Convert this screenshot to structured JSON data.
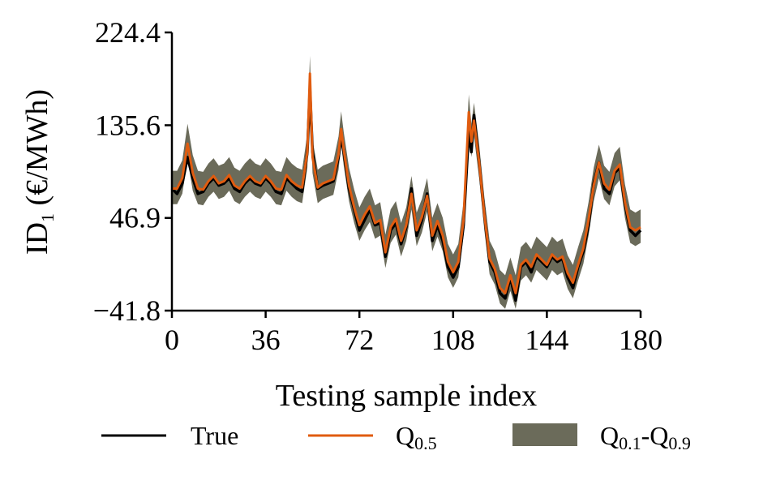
{
  "chart_data": {
    "type": "line",
    "xlabel": "Testing sample index",
    "ylabel": "ID",
    "ylabel_sub": "1",
    "ylabel_unit": " (€/MWh)",
    "xlim": [
      0,
      180
    ],
    "ylim": [
      -41.8,
      224.4
    ],
    "xticks": [
      0,
      36,
      72,
      108,
      144,
      180
    ],
    "xtick_labels": [
      "0",
      "36",
      "72",
      "108",
      "144",
      "180"
    ],
    "yticks": [
      -41.8,
      46.9,
      135.6,
      224.4
    ],
    "ytick_labels": [
      "−41.8",
      "46.9",
      "135.6",
      "224.4"
    ],
    "grid": false,
    "legend_position": "bottom",
    "colors": {
      "true": "#000000",
      "median": "#e05c10",
      "band": "#6b6b5a"
    },
    "legend": {
      "true_label": "True",
      "median_label": "Q",
      "median_sub": "0.5",
      "band_label_a": "Q",
      "band_sub_a": "0.1",
      "band_sep": "-Q",
      "band_sub_b": "0.9"
    },
    "x": [
      0,
      2,
      4,
      6,
      8,
      10,
      12,
      14,
      16,
      18,
      20,
      22,
      24,
      26,
      28,
      30,
      32,
      34,
      36,
      38,
      40,
      42,
      44,
      46,
      48,
      50,
      52,
      53,
      54,
      56,
      58,
      60,
      62,
      64,
      65,
      66,
      68,
      70,
      72,
      74,
      76,
      78,
      80,
      82,
      84,
      86,
      88,
      90,
      92,
      94,
      96,
      98,
      100,
      102,
      104,
      106,
      108,
      110,
      112,
      114,
      115,
      116,
      118,
      120,
      122,
      124,
      126,
      128,
      130,
      132,
      134,
      136,
      138,
      140,
      142,
      144,
      146,
      148,
      150,
      152,
      154,
      156,
      158,
      160,
      162,
      164,
      166,
      168,
      170,
      172,
      174,
      176,
      178,
      180
    ],
    "series": [
      {
        "name": "True",
        "values": [
          75,
          70,
          80,
          105,
          85,
          70,
          72,
          80,
          85,
          78,
          80,
          85,
          75,
          72,
          80,
          85,
          80,
          78,
          85,
          80,
          72,
          70,
          85,
          80,
          75,
          72,
          110,
          170,
          110,
          75,
          78,
          80,
          82,
          105,
          125,
          110,
          75,
          55,
          35,
          45,
          55,
          40,
          42,
          10,
          35,
          42,
          22,
          38,
          75,
          30,
          45,
          70,
          25,
          40,
          25,
          0,
          -10,
          0,
          40,
          130,
          110,
          145,
          100,
          50,
          5,
          -5,
          -25,
          -30,
          -10,
          -32,
          0,
          5,
          -5,
          10,
          5,
          0,
          10,
          5,
          8,
          -10,
          -20,
          0,
          15,
          40,
          80,
          100,
          75,
          70,
          90,
          95,
          60,
          35,
          30,
          35
        ]
      },
      {
        "name": "Q0.5",
        "values": [
          75,
          75,
          85,
          118,
          90,
          75,
          74,
          82,
          87,
          80,
          82,
          88,
          78,
          75,
          82,
          87,
          82,
          80,
          87,
          82,
          75,
          74,
          88,
          82,
          78,
          76,
          110,
          185,
          105,
          76,
          80,
          82,
          84,
          108,
          132,
          112,
          78,
          57,
          40,
          50,
          58,
          42,
          45,
          14,
          38,
          46,
          25,
          40,
          70,
          35,
          48,
          68,
          30,
          44,
          30,
          5,
          -5,
          5,
          45,
          148,
          120,
          140,
          100,
          50,
          8,
          -2,
          -20,
          -25,
          -8,
          -25,
          2,
          7,
          0,
          12,
          7,
          2,
          12,
          7,
          10,
          -6,
          -15,
          2,
          18,
          45,
          78,
          100,
          80,
          74,
          92,
          98,
          62,
          38,
          35,
          38
        ]
      },
      {
        "name": "Q0.9",
        "values": [
          92,
          92,
          102,
          137,
          107,
          92,
          91,
          99,
          104,
          97,
          99,
          105,
          95,
          92,
          99,
          104,
          99,
          97,
          104,
          99,
          92,
          91,
          105,
          99,
          95,
          93,
          127,
          202,
          122,
          93,
          97,
          99,
          101,
          125,
          149,
          129,
          95,
          74,
          57,
          67,
          75,
          59,
          62,
          31,
          55,
          63,
          42,
          57,
          87,
          52,
          65,
          85,
          47,
          61,
          47,
          22,
          12,
          22,
          62,
          165,
          137,
          157,
          117,
          67,
          25,
          15,
          -3,
          -8,
          9,
          -8,
          19,
          24,
          17,
          29,
          24,
          19,
          29,
          24,
          27,
          11,
          2,
          19,
          35,
          62,
          95,
          117,
          97,
          91,
          109,
          115,
          79,
          55,
          52,
          55
        ]
      },
      {
        "name": "Q0.1",
        "values": [
          60,
          60,
          70,
          103,
          73,
          60,
          59,
          67,
          72,
          65,
          67,
          73,
          63,
          60,
          67,
          72,
          67,
          65,
          72,
          67,
          60,
          59,
          73,
          67,
          63,
          61,
          95,
          170,
          90,
          61,
          65,
          67,
          69,
          93,
          117,
          97,
          63,
          42,
          25,
          35,
          43,
          27,
          30,
          -1,
          23,
          31,
          10,
          25,
          55,
          20,
          33,
          53,
          15,
          29,
          15,
          -10,
          -20,
          -10,
          30,
          133,
          105,
          125,
          85,
          35,
          -7,
          -17,
          -35,
          -40,
          -23,
          -40,
          -13,
          -8,
          -15,
          -3,
          -8,
          -13,
          -3,
          -8,
          -5,
          -21,
          -30,
          -13,
          3,
          30,
          63,
          85,
          65,
          59,
          77,
          83,
          47,
          23,
          20,
          23
        ]
      }
    ]
  }
}
